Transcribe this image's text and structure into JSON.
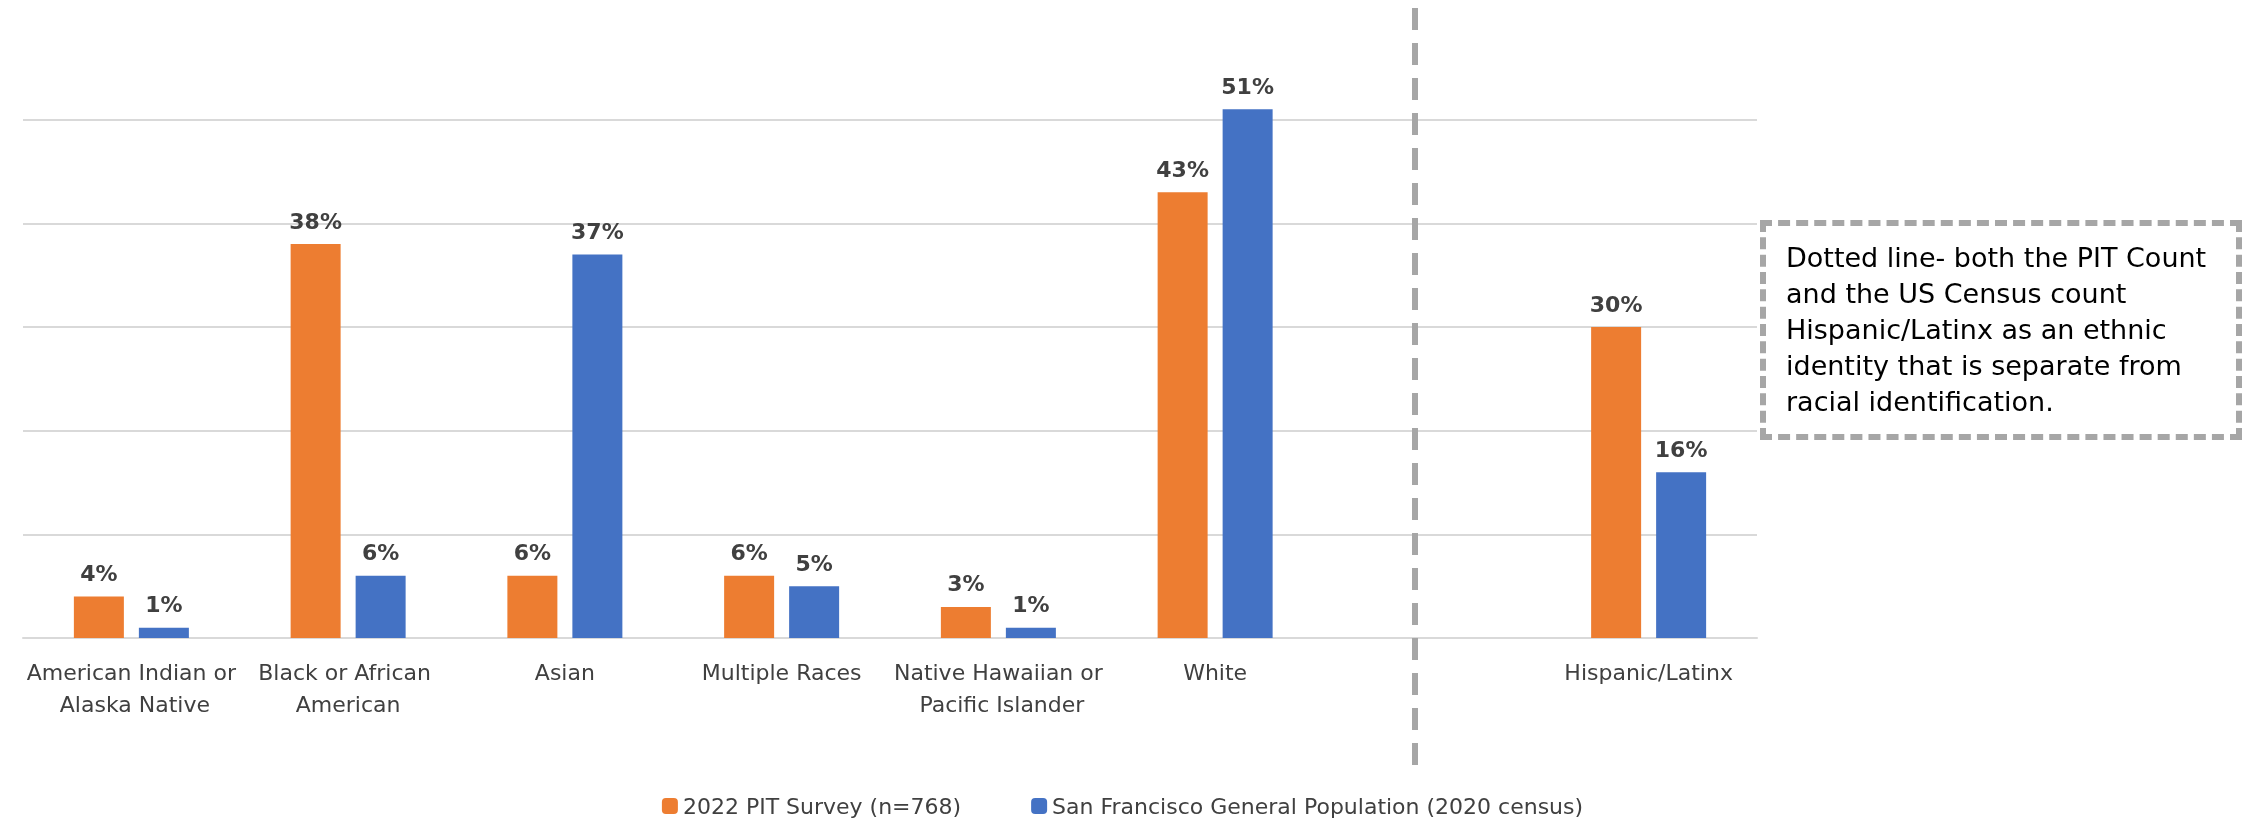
{
  "chart_data": {
    "type": "bar",
    "categories": [
      "American Indian or Alaska Native",
      "Black or African American",
      "Asian",
      "Multiple Races",
      "Native Hawaiian or Pacific Islander",
      "White",
      null,
      "Hispanic/Latinx"
    ],
    "series": [
      {
        "name": "2022 PIT Survey (n=768)",
        "color": "#ed7d31",
        "values": [
          4,
          38,
          6,
          6,
          3,
          43,
          null,
          30
        ],
        "value_labels": [
          "4%",
          "38%",
          "6%",
          "6%",
          "3%",
          "43%",
          null,
          "30%"
        ]
      },
      {
        "name": "San Francisco General Population (2020 census)",
        "color": "#4472c4",
        "values": [
          1,
          6,
          37,
          5,
          1,
          51,
          null,
          16
        ],
        "value_labels": [
          "1%",
          "6%",
          "37%",
          "5%",
          "1%",
          "51%",
          null,
          "16%"
        ]
      }
    ],
    "yticks": [
      {
        "value": 0,
        "label": null
      },
      {
        "value": 10,
        "label": null
      },
      {
        "value": 20,
        "label": null
      },
      {
        "value": 30,
        "label": null
      },
      {
        "value": 40,
        "label": null
      },
      {
        "value": 50,
        "label": null
      }
    ],
    "grid": "y",
    "tick_labels": "x",
    "legend": "bottom",
    "annotations": [
      "Dotted line- both the PIT Count and the US Census count Hispanic/Latinx as an ethnic identity that is separate from racial identification."
    ]
  }
}
